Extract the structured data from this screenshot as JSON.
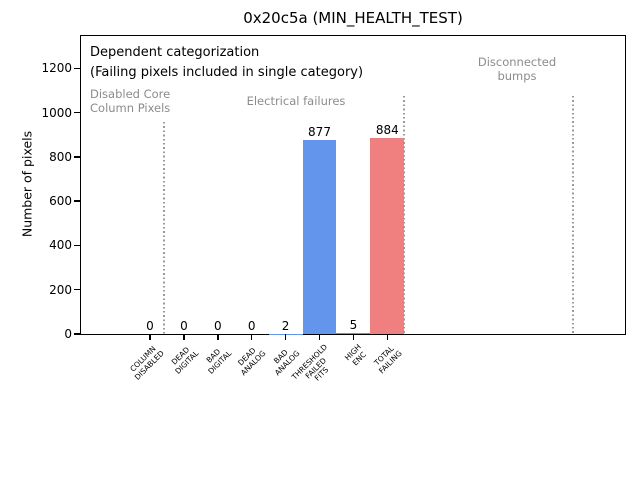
{
  "chart_data": {
    "type": "bar",
    "title": "0x20c5a (MIN_HEALTH_TEST)",
    "ylabel": "Number of pixels",
    "xlabel": "",
    "ylim": [
      0,
      1370
    ],
    "yticks": [
      0,
      200,
      400,
      600,
      800,
      1000,
      1200
    ],
    "grid": false,
    "legend": null,
    "categories": [
      "COLUMN\nDISABLED",
      "DEAD\nDIGITAL",
      "BAD\nDIGITAL",
      "DEAD\nANALOG",
      "BAD\nANALOG",
      "THRESHOLD\nFAILED\nFITS",
      "HIGH\nENC",
      "TOTAL\nFAILING"
    ],
    "values": [
      0,
      0,
      0,
      0,
      2,
      877,
      5,
      884
    ],
    "value_labels": [
      "0",
      "0",
      "0",
      "0",
      "2",
      "877",
      "5",
      "884"
    ],
    "bar_colors": [
      "#6495ED",
      "#6495ED",
      "#6495ED",
      "#6495ED",
      "#6495ED",
      "#6495ED",
      "#6495ED",
      "#F08080"
    ],
    "annotations": {
      "line1": "Dependent categorization",
      "line2": "(Failing pixels included in single category)"
    },
    "regions": [
      {
        "label": "Disabled Core\nColumn Pixels"
      },
      {
        "label": "Electrical failures"
      },
      {
        "label": "Disconnected\nbumps"
      }
    ],
    "colors": {
      "failure_bar": "#6495ED",
      "total_bar": "#F08080",
      "region_label": "#8c8c8c",
      "separator": "#9a9a9a",
      "axis": "#000000",
      "background": "#ffffff"
    }
  }
}
